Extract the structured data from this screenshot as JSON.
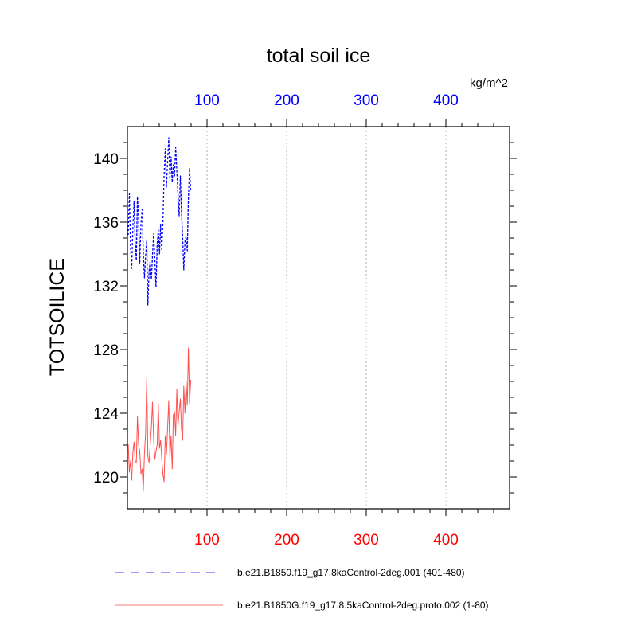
{
  "chart_data": {
    "type": "line",
    "title": "total soil ice",
    "units": "kg/m^2",
    "ylabel": "TOTSOILICE",
    "xlim": [
      0,
      480
    ],
    "ylim": [
      118,
      142
    ],
    "x_ticks_top": [
      "100",
      "200",
      "300",
      "400"
    ],
    "x_ticks_bottom": [
      "100",
      "200",
      "300",
      "400"
    ],
    "y_ticks": [
      "120",
      "124",
      "128",
      "132",
      "136",
      "140"
    ],
    "top_axis_color": "#0000ff",
    "bottom_axis_color": "#ff0000",
    "grid": "vertical dotted at major x ticks",
    "legend_position": "bottom",
    "series": [
      {
        "name": "b.e21.B1850.f19_g17.8kaControl-2deg.001 (401-480)",
        "color": "#0000ff",
        "dash": "dashed",
        "values": [
          135.2,
          137.8,
          134.5,
          133.1,
          135.6,
          137.3,
          134.8,
          133.6,
          137.6,
          136.2,
          133.4,
          135.9,
          136.8,
          134.1,
          132.5,
          133.8,
          134.9,
          130.8,
          132.9,
          133.5,
          132.4,
          133.9,
          135.3,
          133.6,
          131.9,
          134.6,
          135.5,
          134.0,
          135.9,
          134.2,
          136.0,
          139.0,
          140.6,
          138.2,
          139.8,
          141.3,
          138.7,
          140.1,
          138.5,
          139.6,
          138.9,
          140.7,
          139.2,
          137.8,
          136.4,
          138.9,
          136.7,
          135.0,
          133.0,
          134.8,
          135.1,
          134.2,
          137.5,
          139.4,
          138.0
        ]
      },
      {
        "name": "b.e21.B1850G.f19_g17.8.5kaControl-2deg.proto.002 (1-80)",
        "color": "#ff5050",
        "dash": "solid",
        "values": [
          122.1,
          120.3,
          121.0,
          119.8,
          121.5,
          122.2,
          121.0,
          120.9,
          123.8,
          122.0,
          121.6,
          120.2,
          120.5,
          119.1,
          121.5,
          122.7,
          126.2,
          121.3,
          120.9,
          122.0,
          123.1,
          124.7,
          122.3,
          121.1,
          121.6,
          122.0,
          124.6,
          121.8,
          122.3,
          121.1,
          120.2,
          119.7,
          122.6,
          121.4,
          123.1,
          124.8,
          121.2,
          122.6,
          120.5,
          123.9,
          124.1,
          122.6,
          125.5,
          123.2,
          124.1,
          124.9,
          123.0,
          122.3,
          125.7,
          124.0,
          126.0,
          124.5,
          128.1,
          124.6,
          126.1
        ]
      }
    ]
  }
}
